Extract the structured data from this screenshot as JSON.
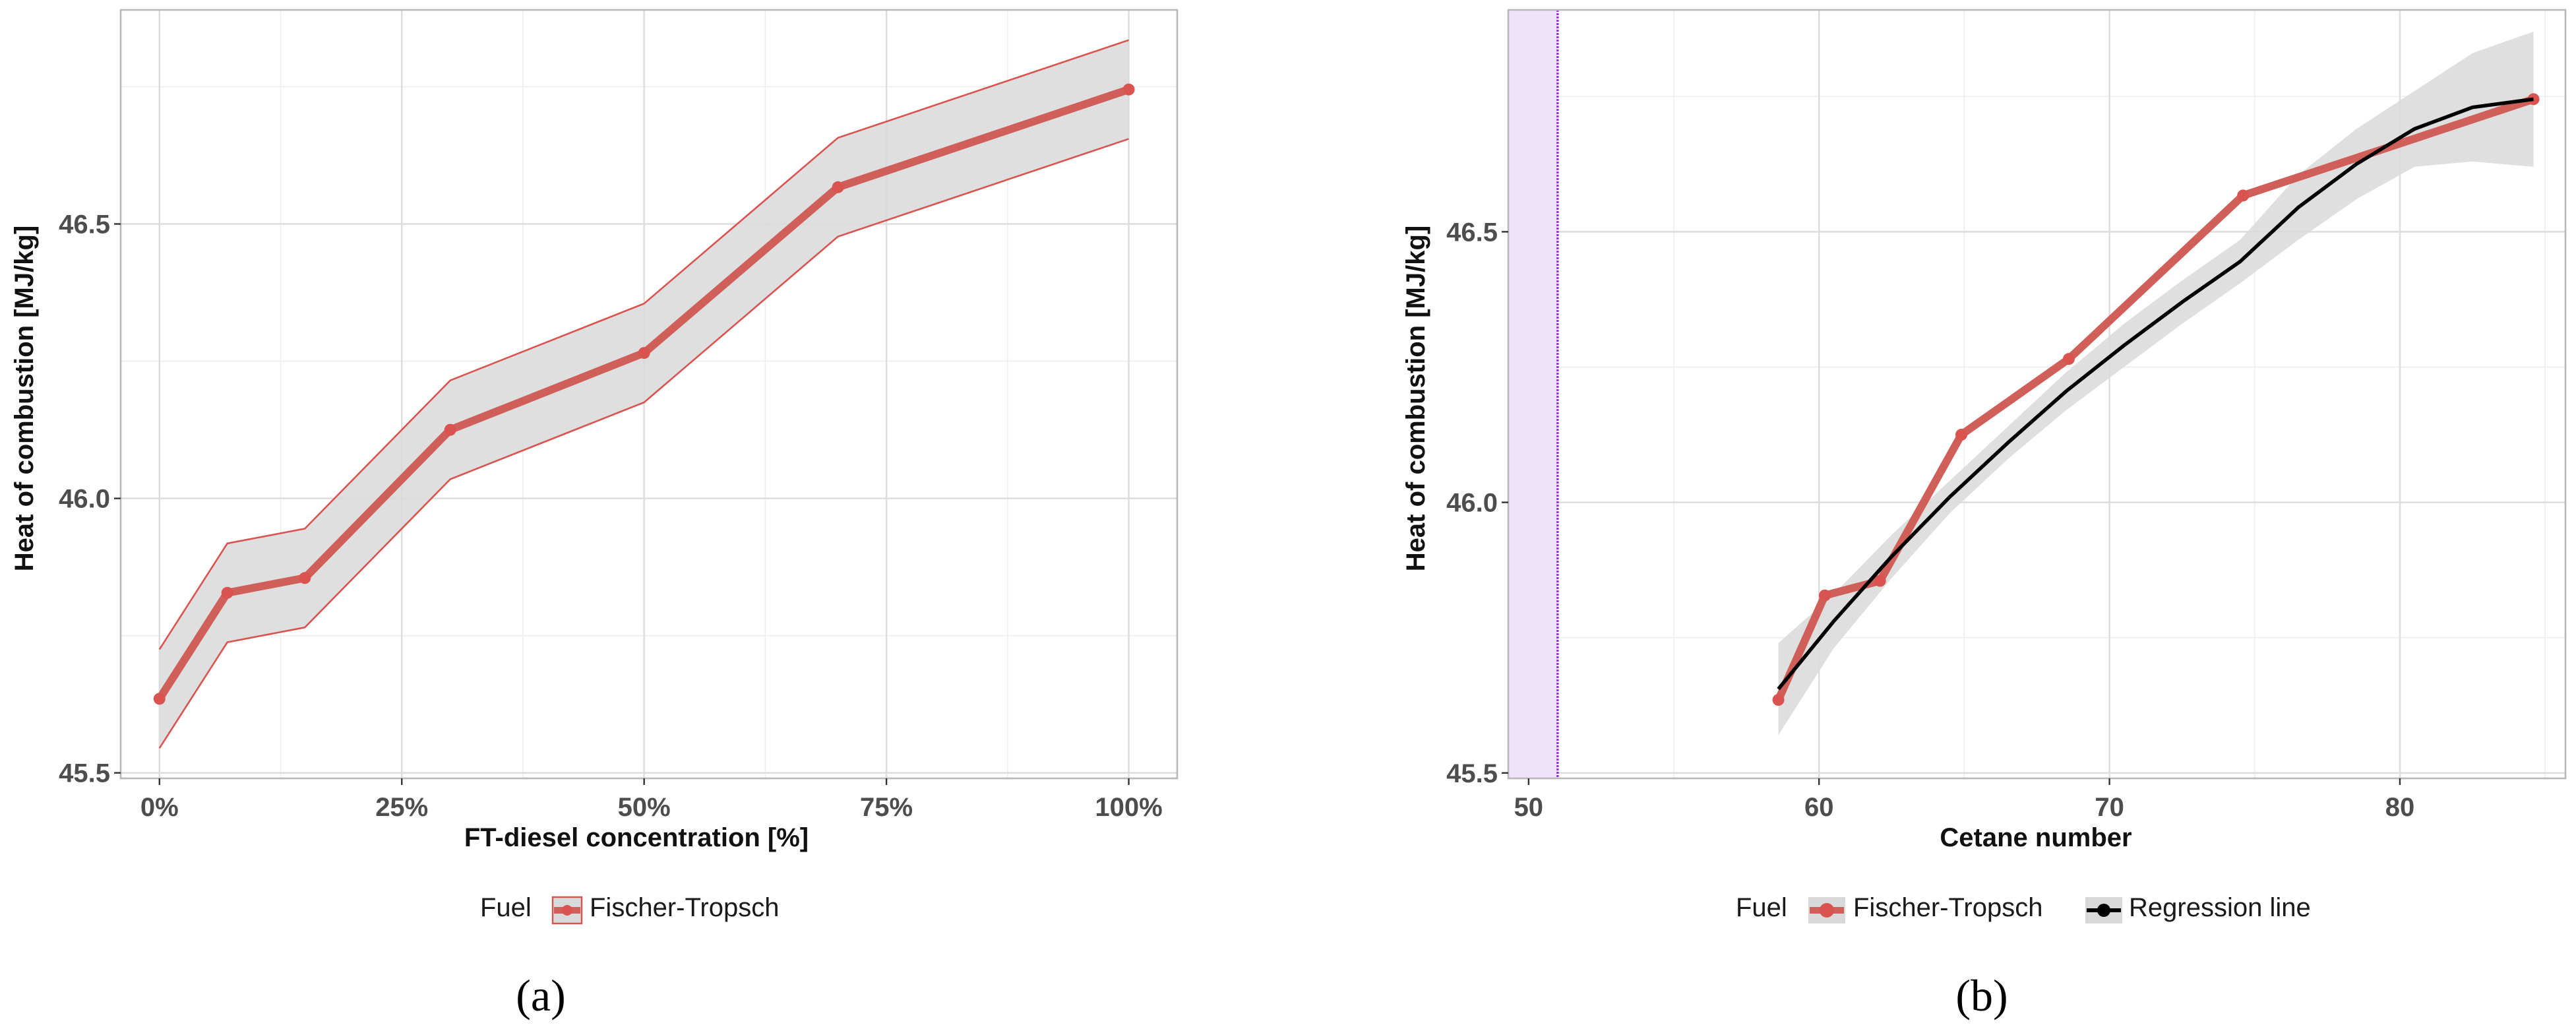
{
  "colors": {
    "fischer_tropsch": "#d9534f",
    "fischer_tropsch_line": "#cf5f58",
    "ribbon": "#d9d9d9",
    "regression": "#000000",
    "cetane_band": "#efe3fb",
    "cetane_marker": "#9b30d9"
  },
  "chart_data": [
    {
      "id": "a",
      "caption": "(a)",
      "type": "line",
      "xlabel": "FT-diesel concentration [%]",
      "ylabel": "Heat of combustion [MJ/kg]",
      "x_ticks": [
        0,
        25,
        50,
        75,
        100
      ],
      "x_tick_labels": [
        "0%",
        "25%",
        "50%",
        "75%",
        "100%"
      ],
      "y_ticks": [
        45.5,
        46.0,
        46.5
      ],
      "y_tick_labels": [
        "45.5",
        "46.0",
        "46.5"
      ],
      "xlim": [
        -4,
        105
      ],
      "ylim": [
        45.49,
        46.89
      ],
      "legend": {
        "title": "Fuel",
        "position": "bottom",
        "entries": [
          "Fischer-Tropsch"
        ]
      },
      "series": [
        {
          "name": "Fischer-Tropsch",
          "x": [
            0,
            7,
            15,
            30,
            50,
            70,
            100
          ],
          "y": [
            45.635,
            45.828,
            45.855,
            46.125,
            46.265,
            46.567,
            46.745
          ],
          "lower": [
            45.545,
            45.738,
            45.765,
            46.035,
            46.175,
            46.477,
            46.655
          ],
          "upper": [
            45.725,
            45.918,
            45.945,
            46.215,
            46.355,
            46.657,
            46.835
          ]
        }
      ]
    },
    {
      "id": "b",
      "caption": "(b)",
      "type": "line",
      "xlabel": "Cetane number",
      "ylabel": "Heat of combustion [MJ/kg]",
      "x_ticks": [
        50,
        60,
        70,
        80
      ],
      "x_tick_labels": [
        "50",
        "60",
        "70",
        "80"
      ],
      "y_ticks": [
        45.5,
        46.0,
        46.5
      ],
      "y_tick_labels": [
        "45.5",
        "46.0",
        "46.5"
      ],
      "xlim": [
        49.3,
        85.7
      ],
      "ylim": [
        45.49,
        46.91
      ],
      "reference_band": {
        "x_from": 49.3,
        "x_to": 51.0
      },
      "legend": {
        "title": "Fuel",
        "position": "bottom",
        "entries": [
          "Fischer-Tropsch",
          "Regression line"
        ]
      },
      "series": [
        {
          "name": "Fischer-Tropsch",
          "x": [
            58.6,
            60.2,
            62.1,
            64.9,
            68.6,
            74.6,
            84.6
          ],
          "y": [
            45.635,
            45.828,
            45.855,
            46.125,
            46.265,
            46.567,
            46.745
          ]
        },
        {
          "name": "Regression line",
          "x": [
            58.6,
            60.5,
            62.5,
            64.5,
            66.5,
            68.5,
            70.5,
            72.5,
            74.5,
            76.5,
            78.5,
            80.5,
            82.5,
            84.6
          ],
          "y": [
            45.655,
            45.78,
            45.9,
            46.01,
            46.11,
            46.205,
            46.29,
            46.37,
            46.445,
            46.545,
            46.625,
            46.69,
            46.73,
            46.745
          ],
          "lower": [
            45.57,
            45.73,
            45.86,
            45.98,
            46.08,
            46.17,
            46.25,
            46.33,
            46.405,
            46.485,
            46.56,
            46.62,
            46.63,
            46.62
          ],
          "upper": [
            45.74,
            45.83,
            45.94,
            46.04,
            46.14,
            46.24,
            46.33,
            46.41,
            46.485,
            46.605,
            46.69,
            46.76,
            46.83,
            46.87
          ]
        }
      ]
    }
  ]
}
